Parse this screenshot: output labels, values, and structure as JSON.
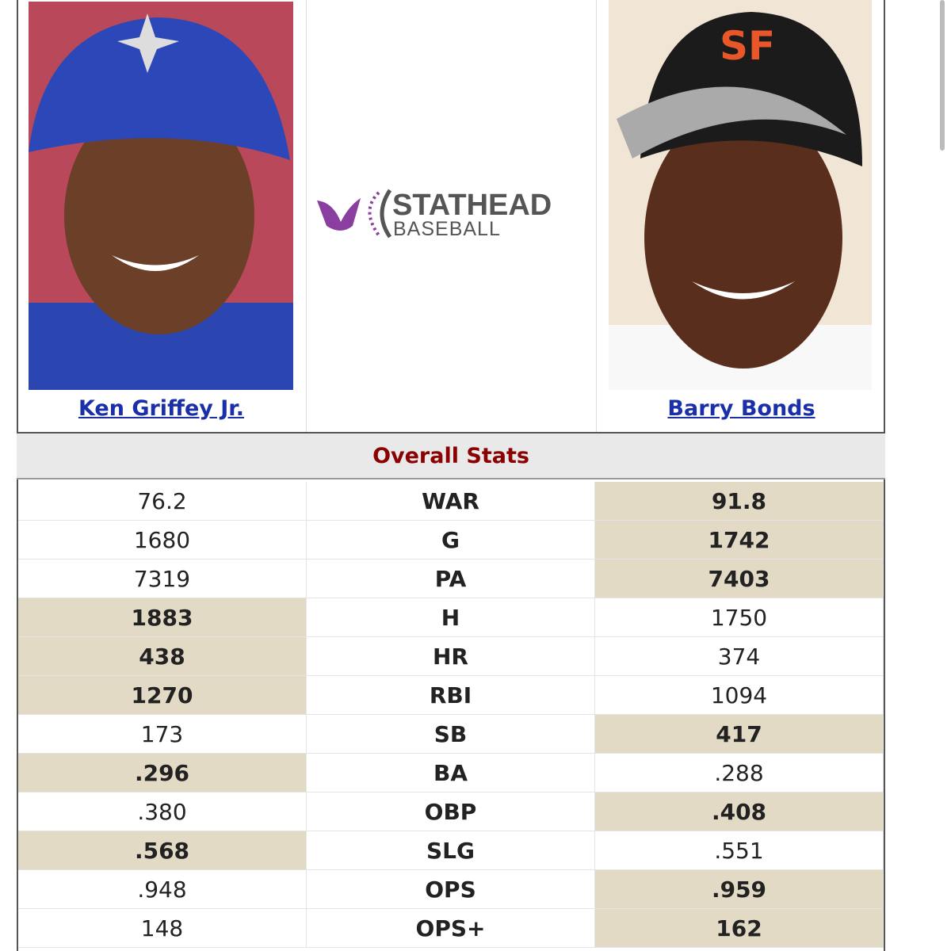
{
  "players": [
    {
      "name": "Ken Griffey Jr."
    },
    {
      "name": "Barry Bonds"
    }
  ],
  "logo": {
    "title": "STATHEAD",
    "subtitle": "BASEBALL"
  },
  "table": {
    "title": "Overall Stats",
    "rows": [
      {
        "stat": "WAR",
        "left": "76.2",
        "right": "91.8",
        "leader": "right"
      },
      {
        "stat": "G",
        "left": "1680",
        "right": "1742",
        "leader": "right"
      },
      {
        "stat": "PA",
        "left": "7319",
        "right": "7403",
        "leader": "right"
      },
      {
        "stat": "H",
        "left": "1883",
        "right": "1750",
        "leader": "left"
      },
      {
        "stat": "HR",
        "left": "438",
        "right": "374",
        "leader": "left"
      },
      {
        "stat": "RBI",
        "left": "1270",
        "right": "1094",
        "leader": "left"
      },
      {
        "stat": "SB",
        "left": "173",
        "right": "417",
        "leader": "right"
      },
      {
        "stat": "BA",
        "left": ".296",
        "right": ".288",
        "leader": "left"
      },
      {
        "stat": "OBP",
        "left": ".380",
        "right": ".408",
        "leader": "right"
      },
      {
        "stat": "SLG",
        "left": ".568",
        "right": ".551",
        "leader": "left"
      },
      {
        "stat": "OPS",
        "left": ".948",
        "right": ".959",
        "leader": "right"
      },
      {
        "stat": "OPS+",
        "left": "148",
        "right": "162",
        "leader": "right"
      }
    ]
  }
}
